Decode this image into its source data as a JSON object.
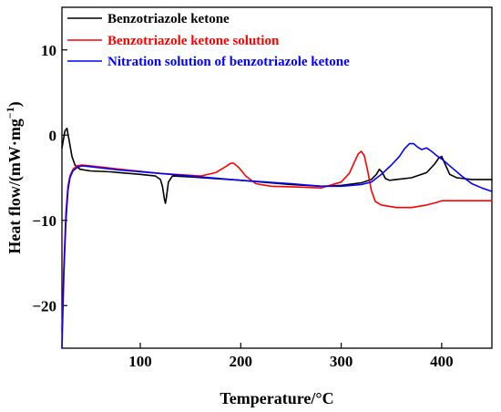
{
  "chart_data": {
    "type": "line",
    "title": "",
    "xlabel": "Temperature/°C",
    "ylabel_main": "Heat flow/(mW·mg",
    "ylabel_exp": "−1",
    "ylabel_close": ")",
    "xlim": [
      22,
      450
    ],
    "ylim": [
      -25,
      15
    ],
    "xticks": [
      100,
      200,
      300,
      400
    ],
    "yticks": [
      10,
      0,
      -10,
      -20
    ],
    "ytick_labels": [
      "10",
      "0",
      "−10",
      "−20"
    ],
    "grid": false,
    "legend_position": "top-left",
    "series": [
      {
        "name": "Benzotriazole ketone",
        "color": "#000000",
        "x": [
          22,
          25,
          27,
          29,
          32,
          35,
          40,
          50,
          70,
          100,
          115,
          120,
          122,
          124,
          125,
          126,
          128,
          132,
          150,
          200,
          250,
          280,
          300,
          320,
          330,
          335,
          338,
          341,
          344,
          348,
          355,
          370,
          385,
          393,
          397,
          400,
          403,
          408,
          415,
          430,
          450
        ],
        "y": [
          -1.5,
          0.5,
          0.8,
          -0.5,
          -2.5,
          -3.5,
          -4.0,
          -4.2,
          -4.3,
          -4.6,
          -4.8,
          -5.2,
          -6.0,
          -7.5,
          -8.0,
          -7.3,
          -5.5,
          -4.8,
          -4.9,
          -5.3,
          -5.8,
          -6.0,
          -5.9,
          -5.6,
          -5.2,
          -4.6,
          -4.0,
          -4.4,
          -5.1,
          -5.3,
          -5.2,
          -5.0,
          -4.4,
          -3.4,
          -2.7,
          -2.5,
          -3.3,
          -4.6,
          -5.0,
          -5.2,
          -5.2
        ]
      },
      {
        "name": "Benzotriazole ketone solution",
        "color": "#ff0000",
        "x": [
          22,
          24,
          26,
          28,
          30,
          33,
          37,
          42,
          50,
          80,
          120,
          160,
          175,
          185,
          190,
          193,
          198,
          205,
          215,
          230,
          260,
          280,
          300,
          308,
          313,
          317,
          320,
          323,
          326,
          330,
          334,
          340,
          355,
          370,
          385,
          395,
          400,
          420,
          450
        ],
        "y": [
          -23,
          -15,
          -9,
          -6,
          -4.8,
          -4.0,
          -3.6,
          -3.5,
          -3.6,
          -4.0,
          -4.5,
          -4.8,
          -4.4,
          -3.7,
          -3.3,
          -3.3,
          -3.8,
          -4.8,
          -5.7,
          -6.0,
          -6.1,
          -6.2,
          -5.5,
          -4.5,
          -3.2,
          -2.2,
          -1.9,
          -2.4,
          -4.0,
          -6.5,
          -7.8,
          -8.2,
          -8.5,
          -8.5,
          -8.2,
          -7.9,
          -7.7,
          -7.7,
          -7.7
        ]
      },
      {
        "name": "Nitration solution of benzotriazole ketone",
        "color": "#0000ff",
        "x": [
          22,
          24,
          26,
          28,
          30,
          33,
          37,
          42,
          50,
          80,
          120,
          160,
          200,
          250,
          280,
          300,
          320,
          330,
          340,
          350,
          358,
          363,
          368,
          372,
          376,
          380,
          385,
          390,
          395,
          400,
          410,
          420,
          430,
          440,
          450
        ],
        "y": [
          -25,
          -16,
          -10,
          -6.5,
          -5,
          -4.2,
          -3.8,
          -3.6,
          -3.7,
          -4.1,
          -4.5,
          -4.9,
          -5.3,
          -5.7,
          -6.0,
          -6.0,
          -5.8,
          -5.5,
          -4.6,
          -3.5,
          -2.5,
          -1.6,
          -1.0,
          -1.0,
          -1.4,
          -1.7,
          -1.5,
          -1.9,
          -2.4,
          -2.8,
          -3.8,
          -4.8,
          -5.7,
          -6.2,
          -6.6
        ]
      }
    ]
  }
}
